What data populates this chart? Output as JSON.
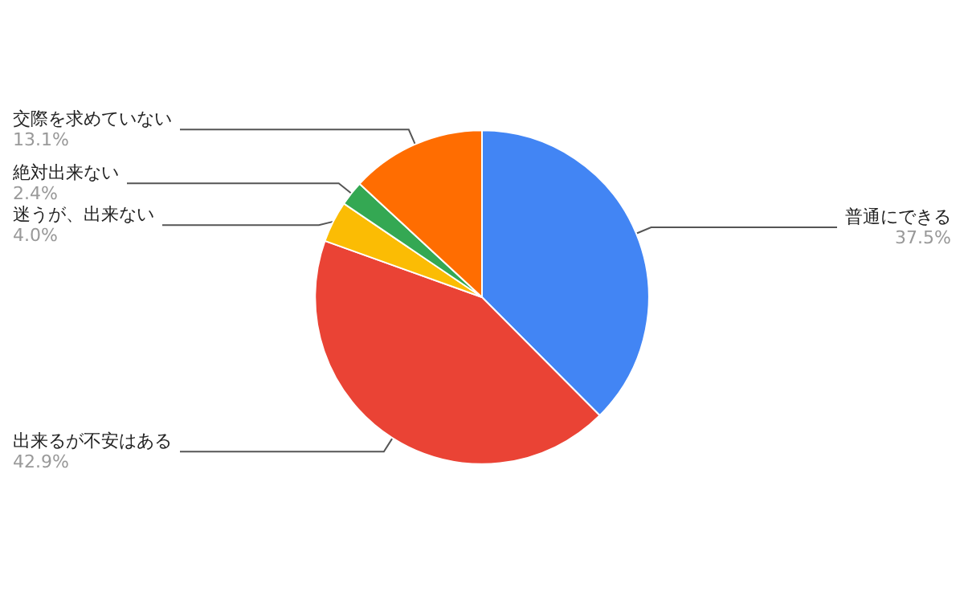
{
  "chart_data": {
    "type": "pie",
    "categories": [
      "普通にできる",
      "出来るが不安はある",
      "迷うが、出来ない",
      "絶対出来ない",
      "交際を求めていない"
    ],
    "values": [
      37.5,
      42.9,
      4.0,
      2.4,
      13.1
    ],
    "value_labels": [
      "37.5%",
      "42.9%",
      "4.0%",
      "2.4%",
      "13.1%"
    ],
    "colors": [
      "#4285f4",
      "#ea4335",
      "#fbbc04",
      "#34a853",
      "#ff6d01"
    ]
  }
}
